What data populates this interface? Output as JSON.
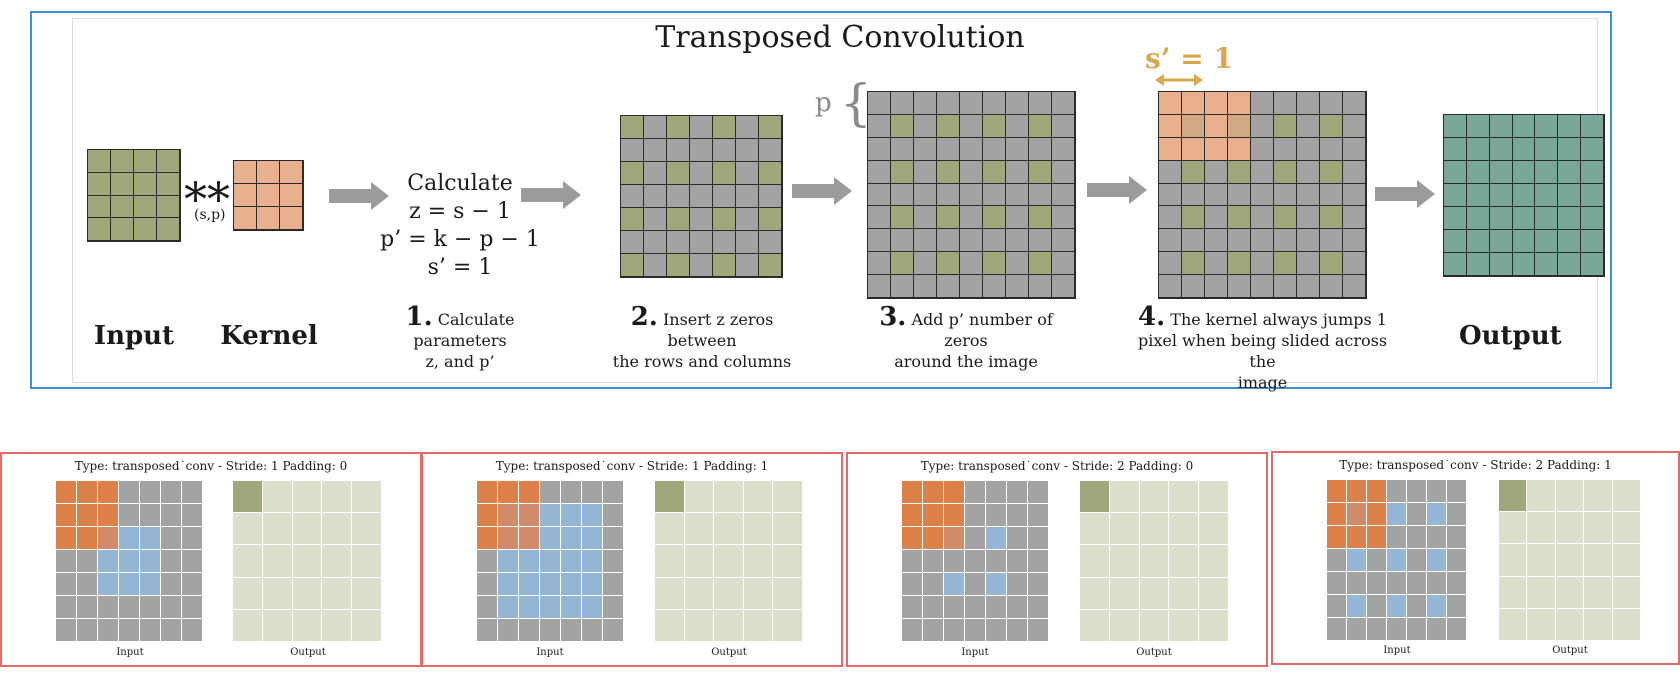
{
  "header": {
    "title": "Transposed Convolution"
  },
  "top": {
    "operator": "**",
    "operator_sub": "(s,p)",
    "calc": {
      "heading": "Calculate",
      "lines": [
        "z  = s − 1",
        "p’ = k − p − 1",
        "s’ = 1"
      ]
    },
    "p_label": "p",
    "brace": "{",
    "s_prime_label": "s’ = 1",
    "labels": {
      "input": "Input",
      "kernel": "Kernel",
      "output": "Output"
    },
    "steps": [
      {
        "num": "1.",
        "text": "Calculate parameters",
        "text2": "z, and p’"
      },
      {
        "num": "2.",
        "text": "Insert z zeros between",
        "text2": "the rows and columns"
      },
      {
        "num": "3.",
        "text": "Add p’ number of zeros",
        "text2": "around the image"
      },
      {
        "num": "4.",
        "text": "The kernel always jumps 1",
        "text2": "pixel when being slided across the",
        "text3": "image"
      }
    ]
  },
  "panels": [
    {
      "title": "Type: transposed˙conv  -  Stride: 1  Padding: 0",
      "input_label": "Input",
      "output_label": "Output"
    },
    {
      "title": "Type: transposed˙conv  -  Stride: 1  Padding: 1",
      "input_label": "Input",
      "output_label": "Output"
    },
    {
      "title": "Type: transposed˙conv  -  Stride: 2  Padding: 0",
      "input_label": "Input",
      "output_label": "Output"
    },
    {
      "title": "Type: transposed˙conv  -  Stride: 2  Padding: 1",
      "input_label": "Input",
      "output_label": "Output"
    }
  ],
  "colors": {
    "frame": "#3f8fce",
    "olive": "#9fa87a",
    "gray": "#a3a3a3",
    "salmon": "#e8b08f",
    "teal": "#79a89b",
    "orange": "#dc8149",
    "blue": "#94b5d4",
    "pale": "#dcdfcc",
    "accent": "#d8a84e",
    "panel_border": "#e46a6a"
  }
}
